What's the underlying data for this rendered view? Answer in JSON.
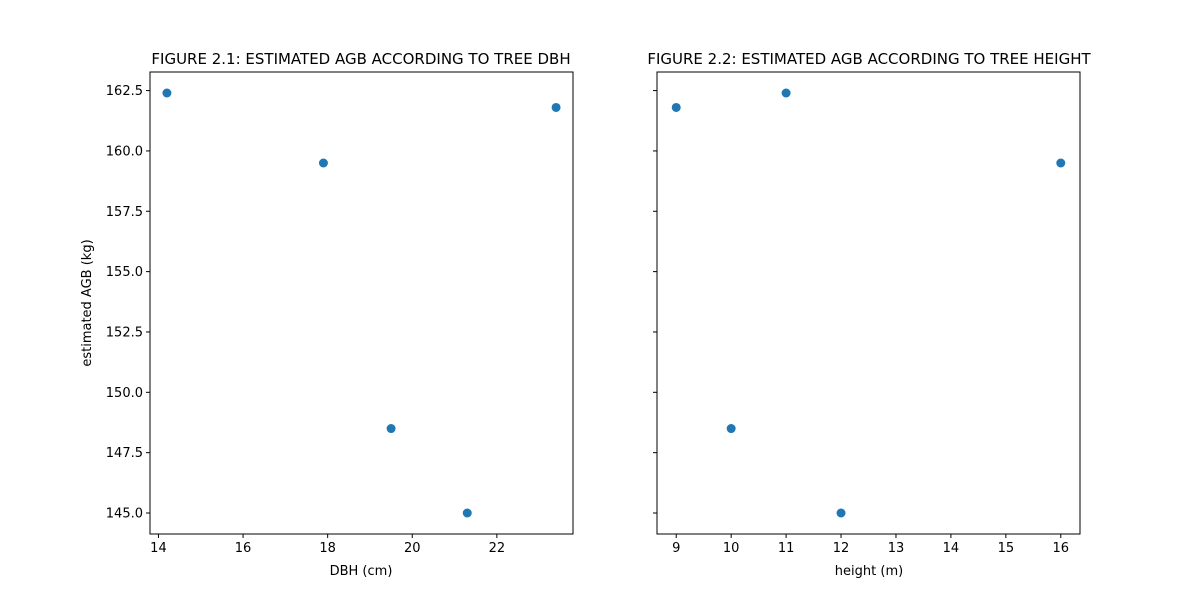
{
  "chart_data": [
    {
      "type": "scatter",
      "title": "FIGURE 2.1: ESTIMATED AGB ACCORDING TO TREE DBH",
      "xlabel": "DBH (cm)",
      "ylabel": "estimated AGB (kg)",
      "xlim": [
        13.8,
        23.8
      ],
      "ylim": [
        144.13,
        163.27
      ],
      "xticks": [
        14,
        16,
        18,
        20,
        22
      ],
      "xtick_labels": [
        "14",
        "16",
        "18",
        "20",
        "22"
      ],
      "yticks": [
        145.0,
        147.5,
        150.0,
        152.5,
        155.0,
        157.5,
        160.0,
        162.5
      ],
      "ytick_labels": [
        "145.0",
        "147.5",
        "150.0",
        "152.5",
        "155.0",
        "157.5",
        "160.0",
        "162.5"
      ],
      "color": "#1f77b4",
      "points": [
        {
          "x": 14.2,
          "y": 162.4
        },
        {
          "x": 17.9,
          "y": 159.5
        },
        {
          "x": 19.5,
          "y": 148.5
        },
        {
          "x": 21.3,
          "y": 145.0
        },
        {
          "x": 23.4,
          "y": 161.8
        }
      ]
    },
    {
      "type": "scatter",
      "title": "FIGURE 2.2: ESTIMATED AGB ACCORDING TO TREE HEIGHT",
      "xlabel": "height (m)",
      "ylabel": "",
      "xlim": [
        8.65,
        16.35
      ],
      "ylim": [
        144.13,
        163.27
      ],
      "xticks": [
        9,
        10,
        11,
        12,
        13,
        14,
        15,
        16
      ],
      "xtick_labels": [
        "9",
        "10",
        "11",
        "12",
        "13",
        "14",
        "15",
        "16"
      ],
      "yticks": [
        145.0,
        147.5,
        150.0,
        152.5,
        155.0,
        157.5,
        160.0,
        162.5
      ],
      "ytick_labels": [],
      "color": "#1f77b4",
      "points": [
        {
          "x": 9,
          "y": 161.8
        },
        {
          "x": 10,
          "y": 148.5
        },
        {
          "x": 11,
          "y": 162.4
        },
        {
          "x": 12,
          "y": 145.0
        },
        {
          "x": 16,
          "y": 159.5
        }
      ]
    }
  ]
}
